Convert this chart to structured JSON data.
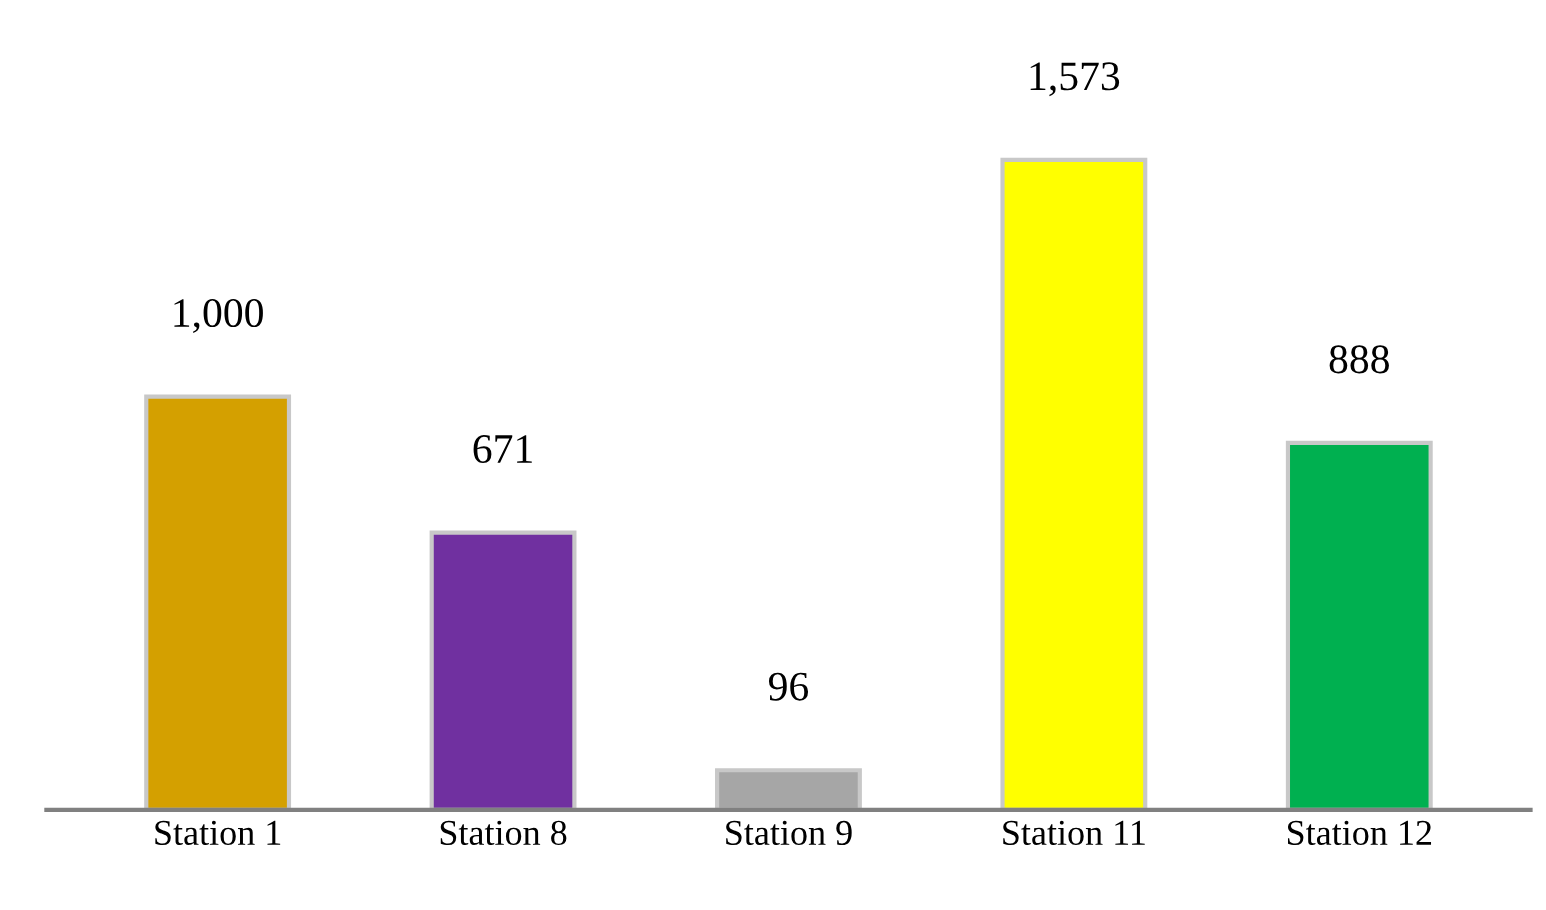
{
  "chart_data": {
    "type": "bar",
    "categories": [
      "Station 1",
      "Station 8",
      "Station 9",
      "Station 11",
      "Station 12"
    ],
    "values": [
      1000,
      671,
      96,
      1573,
      888
    ],
    "colors": [
      "#d4a000",
      "#7030a0",
      "#a6a6a6",
      "#ffff00",
      "#00b050"
    ],
    "value_labels": [
      "1,000",
      "671",
      "96",
      "1,573",
      "888"
    ]
  }
}
